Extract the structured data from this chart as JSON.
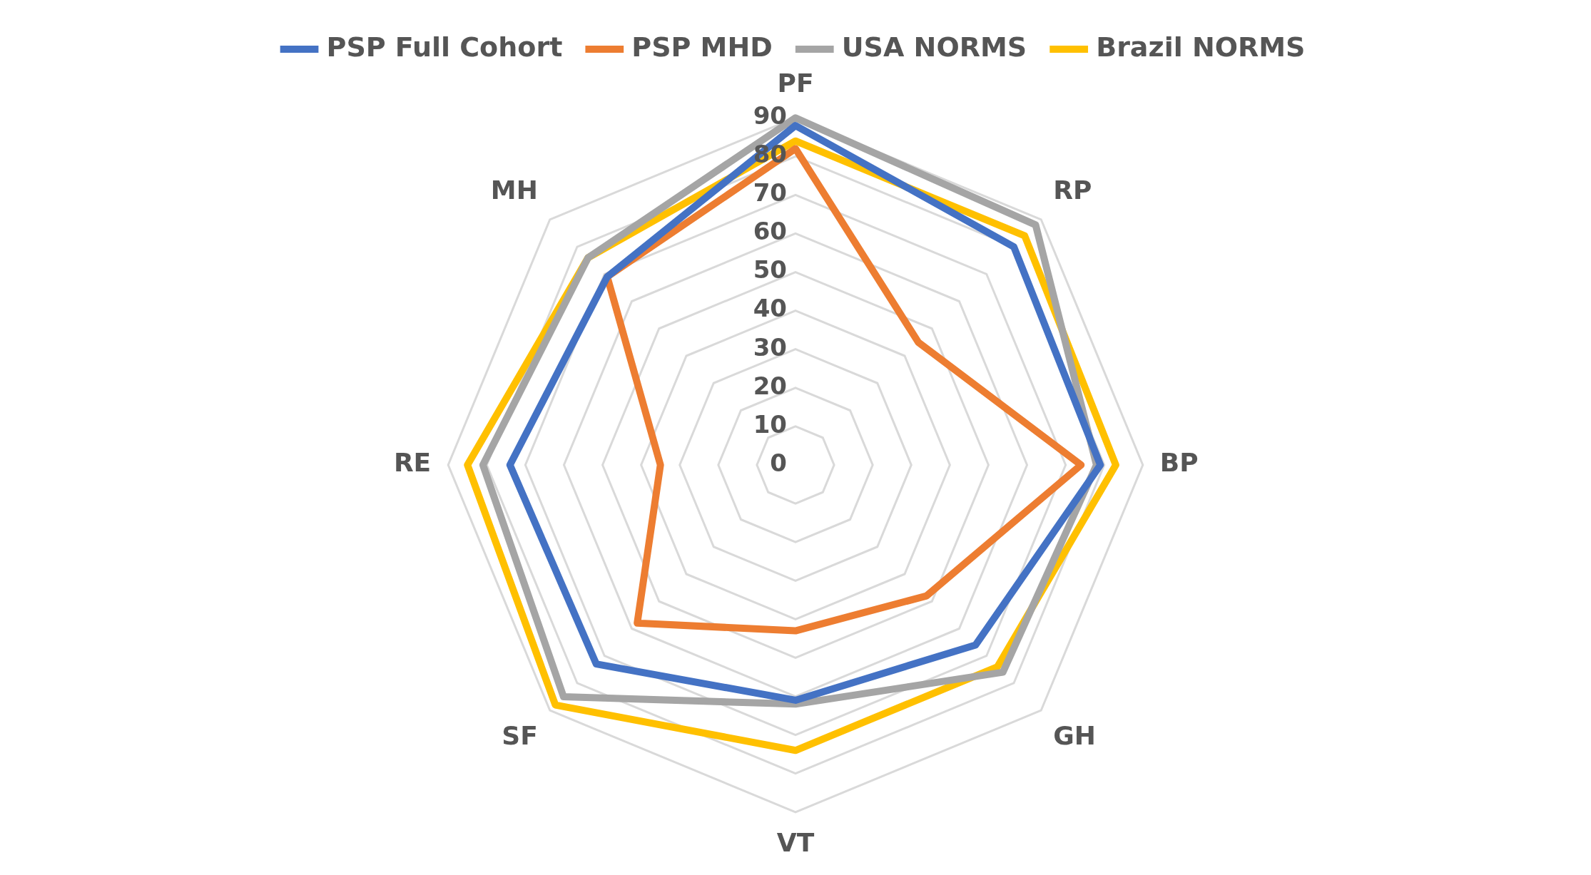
{
  "chart_data": {
    "type": "radar",
    "categories": [
      "PF",
      "RP",
      "BP",
      "GH",
      "VT",
      "SF",
      "RE",
      "MH"
    ],
    "series": [
      {
        "name": "PSP Full Cohort",
        "color": "#4472c4",
        "values": [
          88,
          80,
          79,
          66,
          61,
          73,
          74,
          69
        ]
      },
      {
        "name": "PSP MHD",
        "color": "#ed7d31",
        "values": [
          82,
          45,
          74,
          48,
          43,
          58,
          35,
          69
        ]
      },
      {
        "name": "USA NORMS",
        "color": "#a5a5a5",
        "values": [
          90,
          88,
          78,
          76,
          62,
          85,
          81,
          76
        ]
      },
      {
        "name": "Brazil NORMS",
        "color": "#ffc000",
        "values": [
          84,
          84,
          83,
          74,
          74,
          88,
          85,
          76
        ]
      }
    ],
    "ylim": [
      0,
      90
    ],
    "yticks": [
      0,
      10,
      20,
      30,
      40,
      50,
      60,
      70,
      80,
      90
    ],
    "grid": true,
    "legend": "top",
    "marker": "none"
  }
}
